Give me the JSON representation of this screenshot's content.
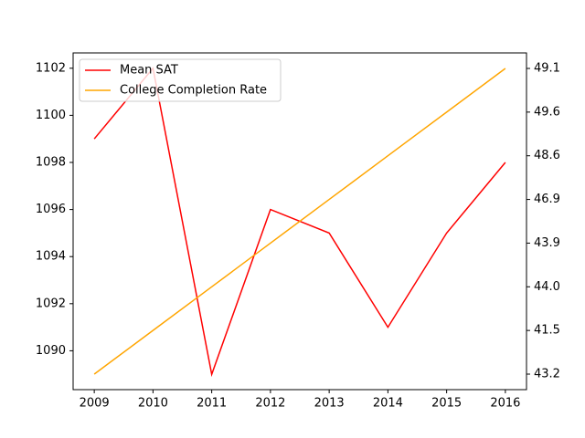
{
  "chart_data": {
    "type": "line",
    "x": [
      2009,
      2010,
      2011,
      2012,
      2013,
      2014,
      2015,
      2016
    ],
    "xlim": [
      2008.64,
      2016.36
    ],
    "xticks": [
      2009,
      2010,
      2011,
      2012,
      2013,
      2014,
      2015,
      2016
    ],
    "ylim": [
      1088.35,
      1102.65
    ],
    "yticks": [
      1090,
      1092,
      1094,
      1096,
      1098,
      1100,
      1102
    ],
    "y2categories": [
      "43.2",
      "41.5",
      "44.0",
      "43.9",
      "46.9",
      "48.6",
      "49.6",
      "49.1"
    ],
    "series": [
      {
        "name": "Mean SAT",
        "color": "#ff0000",
        "values": [
          1099,
          1102,
          1089,
          1096,
          1095,
          1091,
          1095,
          1098
        ]
      },
      {
        "name": "College Completion Rate",
        "color": "#ffa500",
        "axis": "y2",
        "values": [
          "43.2",
          "41.5",
          "44.0",
          "43.9",
          "46.9",
          "48.6",
          "49.6",
          "49.1"
        ]
      }
    ],
    "legend": "upper left"
  }
}
